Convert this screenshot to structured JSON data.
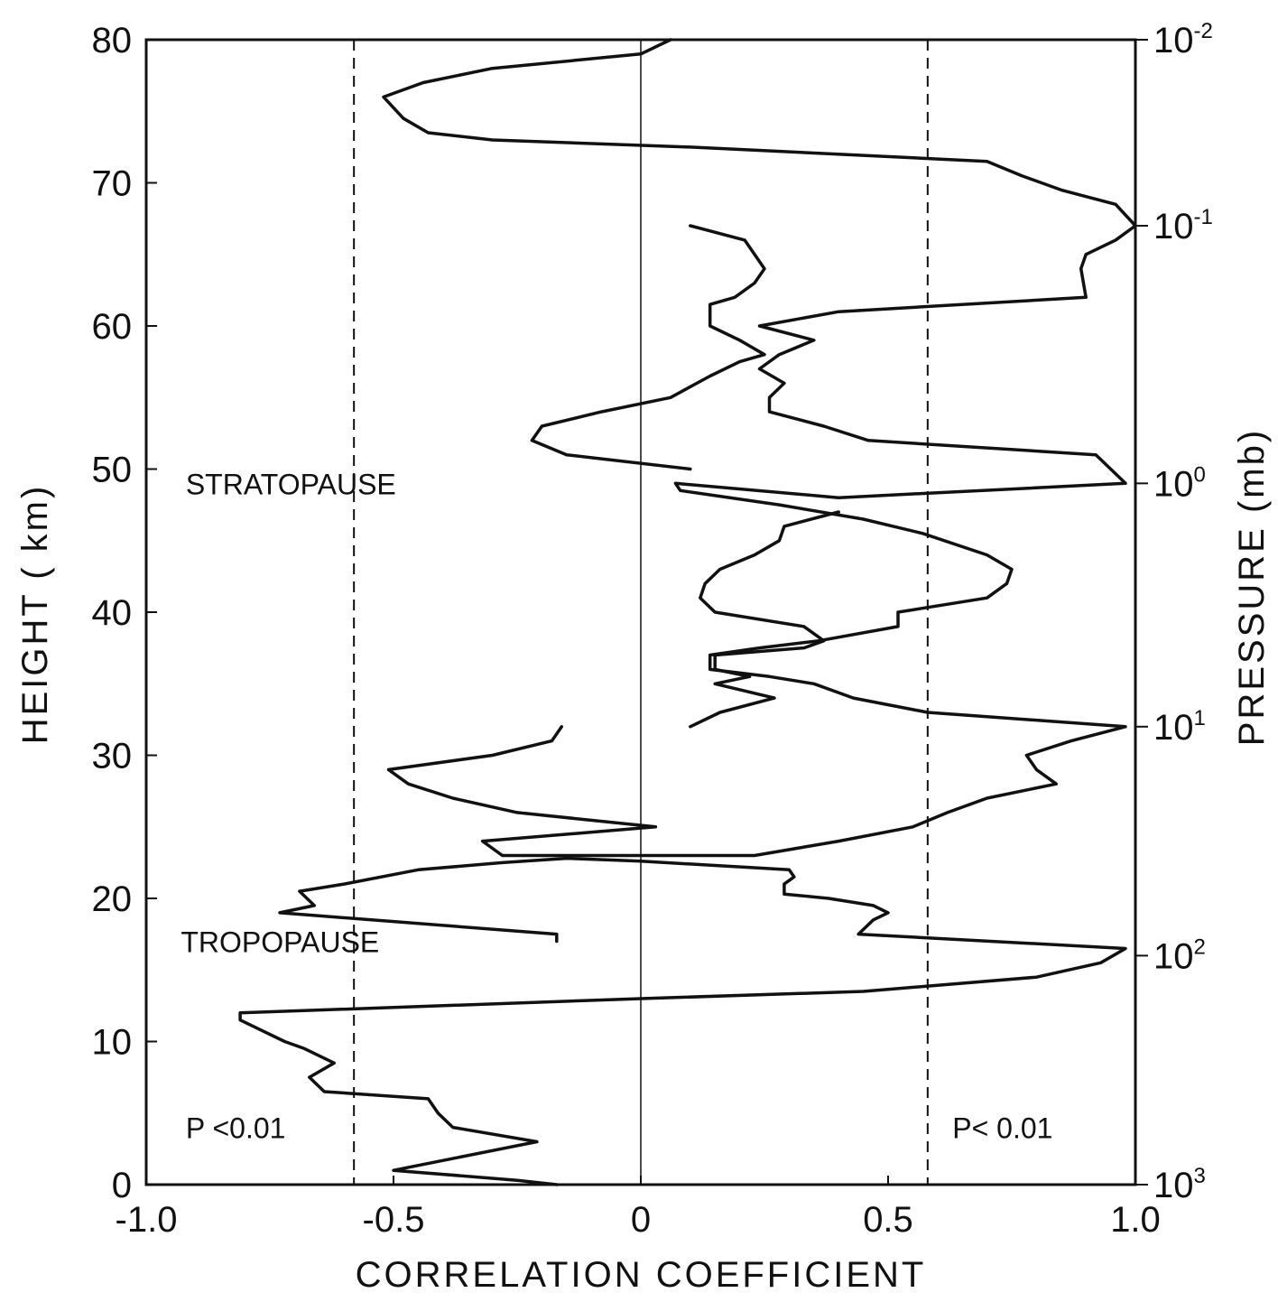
{
  "chart_data": {
    "type": "line",
    "xlabel": "CORRELATION COEFFICIENT",
    "ylabel": "HEIGHT ( km)",
    "y2label": "PRESSURE (mb)",
    "xlim": [
      -1.0,
      1.0
    ],
    "ylim": [
      0,
      80
    ],
    "x_ticks": [
      {
        "value": -1.0,
        "label": "-1.0"
      },
      {
        "value": -0.5,
        "label": "-0.5"
      },
      {
        "value": 0,
        "label": "0"
      },
      {
        "value": 0.5,
        "label": "0.5"
      },
      {
        "value": 1.0,
        "label": "1.0"
      }
    ],
    "y_ticks": [
      {
        "value": 0,
        "label": "0"
      },
      {
        "value": 10,
        "label": "10"
      },
      {
        "value": 20,
        "label": "20"
      },
      {
        "value": 30,
        "label": "30"
      },
      {
        "value": 40,
        "label": "40"
      },
      {
        "value": 50,
        "label": "50"
      },
      {
        "value": 60,
        "label": "60"
      },
      {
        "value": 70,
        "label": "70"
      },
      {
        "value": 80,
        "label": "80"
      }
    ],
    "y2_ticks": [
      {
        "height": 80,
        "base": "10",
        "exp": "-2"
      },
      {
        "height": 67,
        "base": "10",
        "exp": "-1"
      },
      {
        "height": 49,
        "base": "10",
        "exp": "0"
      },
      {
        "height": 32,
        "base": "10",
        "exp": "1"
      },
      {
        "height": 16,
        "base": "10",
        "exp": "2"
      },
      {
        "height": 0,
        "base": "10",
        "exp": "3"
      }
    ],
    "reference_lines": [
      {
        "x": -0.58,
        "style": "dashed"
      },
      {
        "x": 0.58,
        "style": "dashed"
      },
      {
        "x": 0,
        "style": "solid"
      }
    ],
    "annotations": [
      {
        "text": "STRATOPAUSE",
        "x": -0.92,
        "y": 49
      },
      {
        "text": "TROPOPAUSE",
        "x": -0.93,
        "y": 17
      },
      {
        "text": "P <0.01",
        "x": -0.92,
        "y": 4
      },
      {
        "text": "P< 0.01",
        "x": 0.63,
        "y": 4
      }
    ],
    "series": [
      {
        "points": [
          [
            -0.17,
            0
          ],
          [
            -0.25,
            0.3
          ],
          [
            -0.5,
            1.0
          ],
          [
            -0.21,
            3.0
          ],
          [
            -0.38,
            4.0
          ],
          [
            -0.41,
            5.0
          ],
          [
            -0.43,
            6.0
          ],
          [
            -0.64,
            6.5
          ],
          [
            -0.67,
            7.5
          ],
          [
            -0.62,
            8.5
          ],
          [
            -0.68,
            9.5
          ],
          [
            -0.72,
            10.0
          ],
          [
            -0.81,
            11.5
          ],
          [
            -0.81,
            12.0
          ],
          [
            0.0,
            13.0
          ],
          [
            0.45,
            13.5
          ],
          [
            0.8,
            14.5
          ],
          [
            0.93,
            15.5
          ],
          [
            0.98,
            16.5
          ],
          [
            0.44,
            17.5
          ],
          [
            0.47,
            18.5
          ],
          [
            0.5,
            19.0
          ],
          [
            0.47,
            19.5
          ],
          [
            0.38,
            20.0
          ],
          [
            0.29,
            20.3
          ],
          [
            0.29,
            21.0
          ],
          [
            0.31,
            21.5
          ],
          [
            0.3,
            22.0
          ],
          [
            0.15,
            22.3
          ],
          [
            0.0,
            22.6
          ],
          [
            -0.15,
            22.8
          ],
          [
            -0.28,
            22.5
          ],
          [
            -0.45,
            22.0
          ],
          [
            -0.6,
            21.0
          ],
          [
            -0.69,
            20.5
          ],
          [
            -0.66,
            19.5
          ],
          [
            -0.73,
            19.0
          ],
          [
            -0.17,
            17.5
          ],
          [
            -0.17,
            17.0
          ]
        ]
      },
      {
        "points": [
          [
            -0.16,
            32.0
          ],
          [
            -0.18,
            31.0
          ],
          [
            -0.3,
            30.0
          ],
          [
            -0.51,
            29.0
          ],
          [
            -0.47,
            28.0
          ],
          [
            -0.38,
            27.0
          ],
          [
            -0.25,
            26.0
          ],
          [
            0.03,
            25.0
          ],
          [
            -0.32,
            24.0
          ],
          [
            -0.28,
            23.0
          ],
          [
            0.1,
            23.0
          ],
          [
            0.23,
            23.0
          ],
          [
            0.4,
            24.0
          ],
          [
            0.55,
            25.0
          ],
          [
            0.62,
            26.0
          ],
          [
            0.7,
            27.0
          ],
          [
            0.84,
            28.0
          ],
          [
            0.8,
            29.0
          ],
          [
            0.78,
            30.0
          ],
          [
            0.87,
            31.0
          ],
          [
            0.98,
            32.0
          ],
          [
            0.58,
            33.0
          ],
          [
            0.43,
            34.0
          ],
          [
            0.35,
            35.0
          ],
          [
            0.26,
            35.5
          ],
          [
            0.14,
            36.0
          ],
          [
            0.14,
            37.0
          ],
          [
            0.24,
            37.5
          ],
          [
            0.36,
            38.0
          ],
          [
            0.52,
            39.0
          ],
          [
            0.52,
            40.0
          ],
          [
            0.7,
            41.0
          ],
          [
            0.74,
            42.0
          ],
          [
            0.75,
            43.0
          ],
          [
            0.7,
            44.0
          ],
          [
            0.57,
            45.5
          ],
          [
            0.45,
            46.5
          ],
          [
            0.28,
            47.5
          ],
          [
            0.08,
            48.5
          ],
          [
            0.07,
            49.0
          ],
          [
            0.4,
            48.0
          ],
          [
            0.98,
            49.0
          ],
          [
            0.92,
            51.0
          ],
          [
            0.46,
            52.0
          ],
          [
            0.37,
            53.0
          ],
          [
            0.26,
            54.0
          ],
          [
            0.26,
            55.0
          ],
          [
            0.29,
            56.0
          ],
          [
            0.24,
            57.0
          ],
          [
            0.28,
            58.0
          ],
          [
            0.35,
            59.0
          ],
          [
            0.24,
            60.0
          ],
          [
            0.4,
            61.0
          ],
          [
            0.9,
            62.0
          ],
          [
            0.89,
            64.0
          ],
          [
            0.9,
            65.0
          ],
          [
            0.96,
            66.0
          ],
          [
            1.0,
            67.0
          ],
          [
            0.96,
            68.5
          ],
          [
            0.85,
            69.5
          ],
          [
            0.77,
            70.5
          ],
          [
            0.7,
            71.5
          ],
          [
            0.1,
            72.5
          ],
          [
            -0.3,
            73.0
          ],
          [
            -0.43,
            73.5
          ],
          [
            -0.48,
            74.5
          ],
          [
            -0.52,
            76.0
          ],
          [
            -0.44,
            77.0
          ],
          [
            -0.3,
            78.0
          ],
          [
            0.0,
            79.0
          ],
          [
            0.06,
            80.0
          ]
        ]
      },
      {
        "points": [
          [
            0.1,
            67.0
          ],
          [
            0.21,
            66.0
          ],
          [
            0.25,
            64.0
          ],
          [
            0.23,
            63.0
          ],
          [
            0.19,
            62.0
          ],
          [
            0.14,
            61.5
          ],
          [
            0.14,
            60.0
          ],
          [
            0.2,
            59.0
          ],
          [
            0.25,
            58.0
          ],
          [
            0.2,
            57.5
          ],
          [
            0.14,
            56.5
          ],
          [
            0.06,
            55.0
          ],
          [
            -0.08,
            54.0
          ],
          [
            -0.2,
            53.0
          ],
          [
            -0.22,
            52.0
          ],
          [
            -0.15,
            51.0
          ],
          [
            0.1,
            50.0
          ]
        ]
      },
      {
        "points": [
          [
            0.1,
            32.0
          ],
          [
            0.16,
            33.0
          ],
          [
            0.27,
            34.0
          ],
          [
            0.15,
            35.0
          ],
          [
            0.22,
            35.5
          ],
          [
            0.15,
            36.0
          ],
          [
            0.15,
            37.0
          ],
          [
            0.33,
            37.5
          ],
          [
            0.37,
            38.0
          ],
          [
            0.33,
            39.0
          ],
          [
            0.15,
            40.0
          ],
          [
            0.12,
            41.0
          ],
          [
            0.13,
            42.0
          ],
          [
            0.16,
            43.0
          ],
          [
            0.23,
            44.0
          ],
          [
            0.28,
            45.0
          ],
          [
            0.29,
            46.0
          ],
          [
            0.4,
            47.0
          ]
        ]
      }
    ]
  }
}
